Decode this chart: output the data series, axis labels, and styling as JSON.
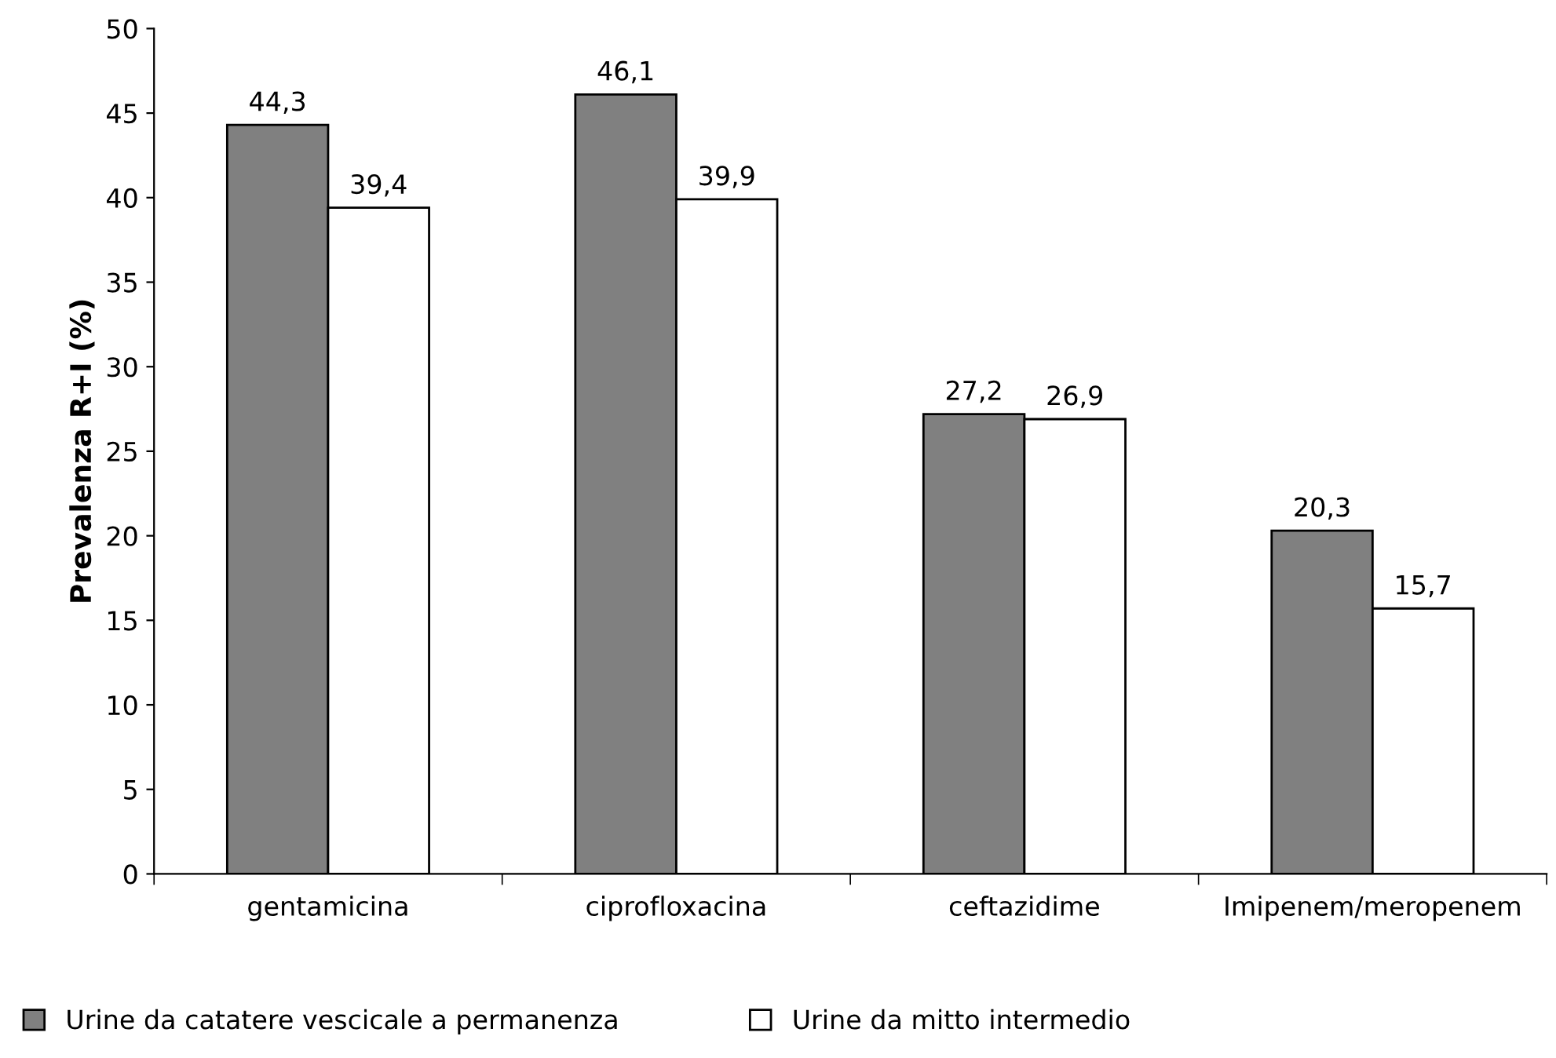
{
  "chart_data": {
    "type": "bar",
    "ylabel": "Prevalenza R+I (%)",
    "categories": [
      "gentamicina",
      "ciprofloxacina",
      "ceftazidime",
      "Imipenem/meropenem"
    ],
    "series": [
      {
        "name": "Urine da catatere vescicale a permanenza",
        "color": "#808080",
        "values": [
          44.3,
          46.1,
          27.2,
          20.3
        ],
        "value_labels": [
          "44,3",
          "46,1",
          "27,2",
          "20,3"
        ]
      },
      {
        "name": "Urine da mitto intermedio",
        "color": "#ffffff",
        "values": [
          39.4,
          39.9,
          26.9,
          15.7
        ],
        "value_labels": [
          "39,4",
          "39,9",
          "26,9",
          "15,7"
        ]
      }
    ],
    "ylim": [
      0,
      50
    ],
    "yticks": [
      0,
      5,
      10,
      15,
      20,
      25,
      30,
      35,
      40,
      45,
      50
    ],
    "grid": false,
    "legend": "bottom left"
  }
}
